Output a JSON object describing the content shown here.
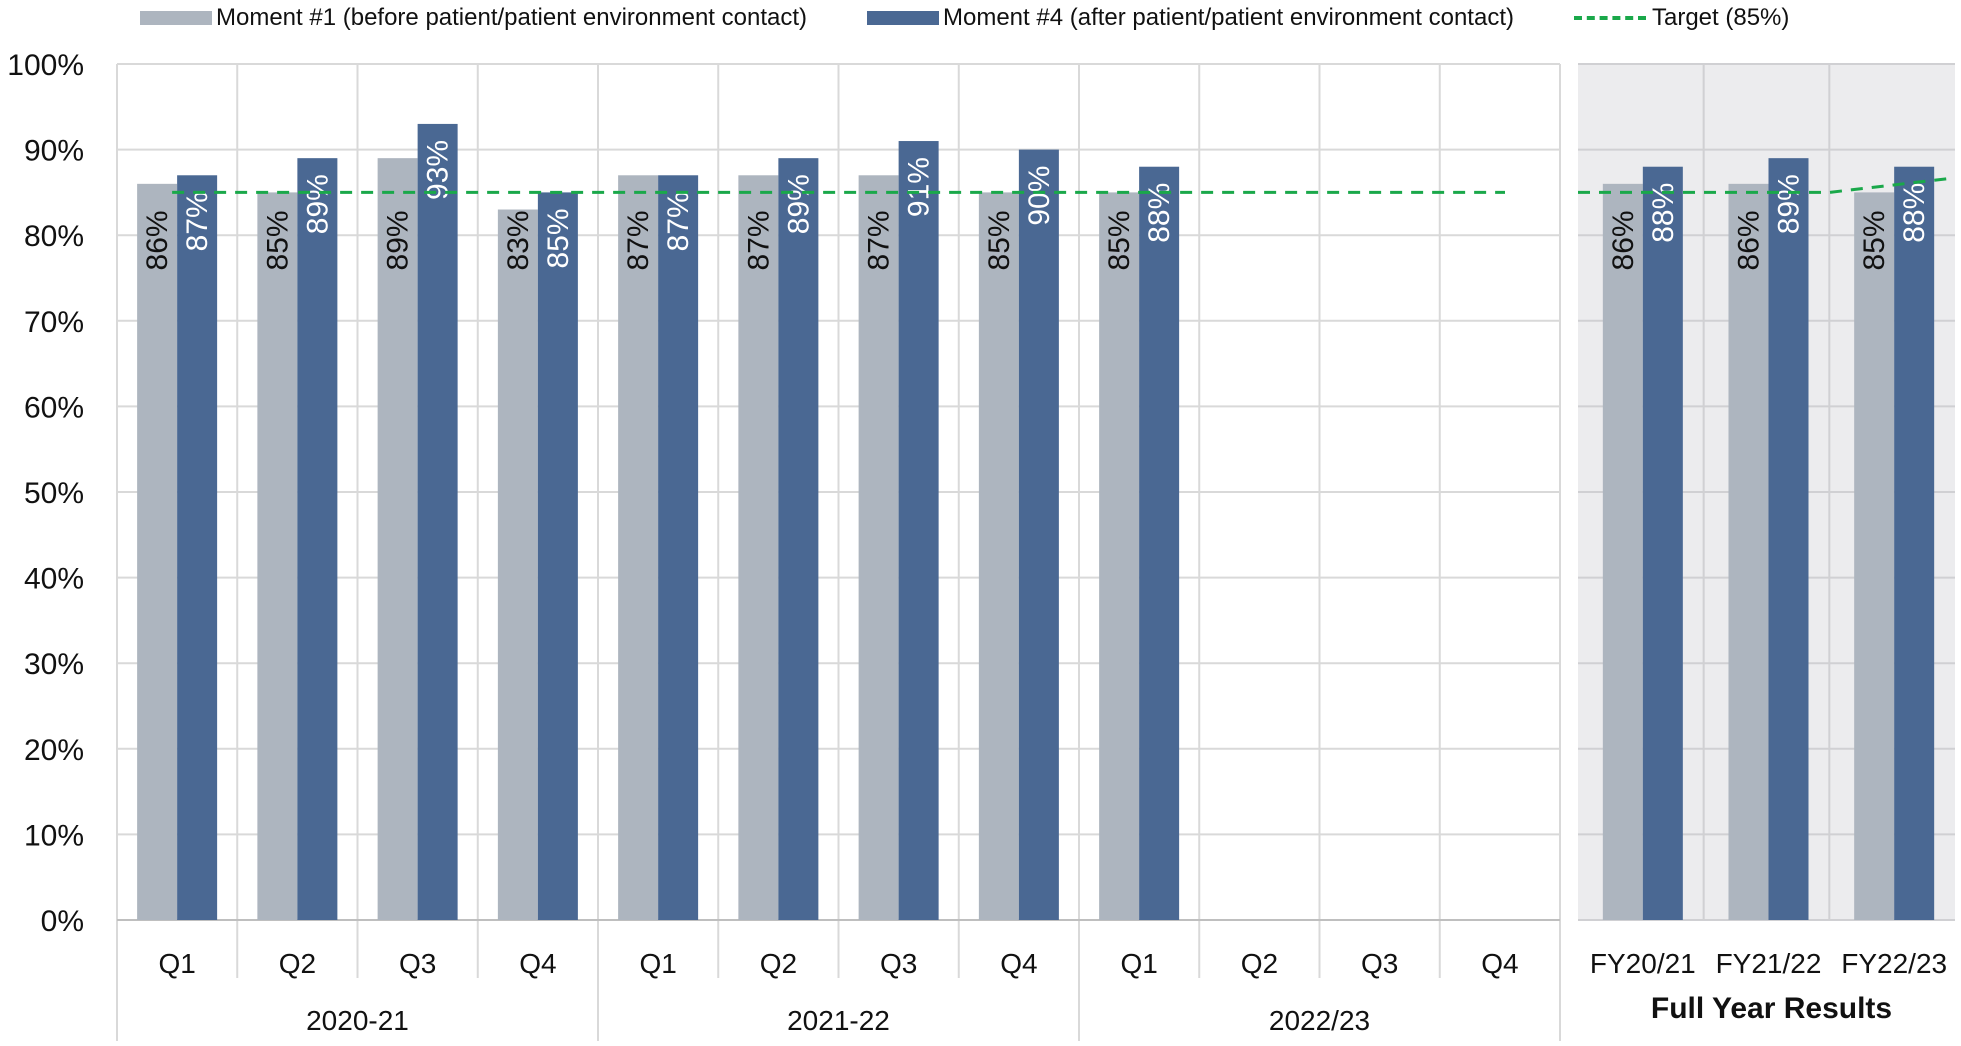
{
  "legend": {
    "m1": "Moment #1 (before patient/patient environment contact)",
    "m4": "Moment #4 (after patient/patient environment contact)",
    "target": "Target (85%)"
  },
  "colors": {
    "m1": "#adb5bf",
    "m4": "#4a6893",
    "target": "#1aa84a",
    "panel": "#ececee",
    "grid": "#d9d9d9"
  },
  "chart_data": {
    "type": "bar",
    "ylim": [
      0,
      100
    ],
    "yticks": [
      "0%",
      "10%",
      "20%",
      "30%",
      "40%",
      "50%",
      "60%",
      "70%",
      "80%",
      "90%",
      "100%"
    ],
    "target": 85,
    "groups": [
      {
        "label": "2020-21",
        "categories": [
          "Q1",
          "Q2",
          "Q3",
          "Q4"
        ]
      },
      {
        "label": "2021-22",
        "categories": [
          "Q1",
          "Q2",
          "Q3",
          "Q4"
        ]
      },
      {
        "label": "2022/23",
        "categories": [
          "Q1",
          "Q2",
          "Q3",
          "Q4"
        ]
      }
    ],
    "series": [
      {
        "name": "Moment #1 (before patient/patient environment contact)",
        "values": [
          86,
          85,
          89,
          83,
          87,
          87,
          87,
          85,
          85,
          null,
          null,
          null
        ],
        "labels": [
          "86%",
          "85%",
          "89%",
          "83%",
          "87%",
          "87%",
          "87%",
          "85%",
          "85%",
          "",
          "",
          ""
        ]
      },
      {
        "name": "Moment #4 (after patient/patient environment contact)",
        "values": [
          87,
          89,
          93,
          85,
          87,
          89,
          91,
          90,
          88,
          null,
          null,
          null
        ],
        "labels": [
          "87%",
          "89%",
          "93%",
          "85%",
          "87%",
          "89%",
          "91%",
          "90%",
          "88%",
          "",
          "",
          ""
        ]
      }
    ],
    "full_year": {
      "title": "Full Year Results",
      "categories": [
        "FY20/21",
        "FY21/22",
        "FY22/23"
      ],
      "m1": [
        86,
        86,
        85
      ],
      "m1_labels": [
        "86%",
        "86%",
        "85%"
      ],
      "m4": [
        88,
        89,
        88
      ],
      "m4_labels": [
        "88%",
        "89%",
        "88%"
      ]
    }
  }
}
